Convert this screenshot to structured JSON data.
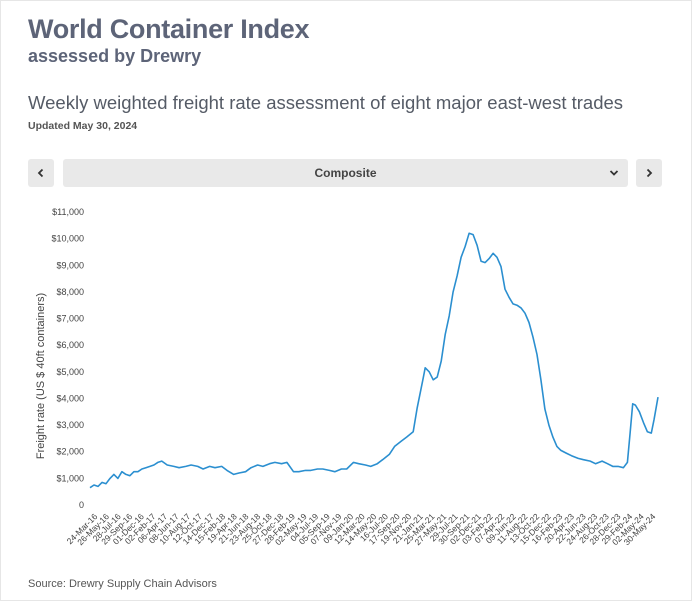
{
  "header": {
    "title": "World Container Index",
    "subtitle": "assessed by Drewry",
    "heading": "Weekly weighted freight rate assessment of eight major east-west trades",
    "updated": "Updated May 30, 2024"
  },
  "selector": {
    "value": "Composite",
    "prev_icon": "chevron-left-icon",
    "next_icon": "chevron-right-icon",
    "dropdown_icon": "chevron-down-icon"
  },
  "footer": {
    "source": "Source: Drewry Supply Chain Advisors"
  },
  "colors": {
    "line": "#2b8fd0",
    "text": "#5d6478",
    "button": "#e9e9e9"
  },
  "chart_data": {
    "type": "line",
    "title": "",
    "xlabel": "",
    "ylabel": "Freight rate (US $ 40ft containers)",
    "ylim": [
      0,
      11000
    ],
    "yticks": [
      {
        "value": 0,
        "label": "0"
      },
      {
        "value": 1000,
        "label": "$1,000"
      },
      {
        "value": 2000,
        "label": "$2,000"
      },
      {
        "value": 3000,
        "label": "$3,000"
      },
      {
        "value": 4000,
        "label": "$4,000"
      },
      {
        "value": 5000,
        "label": "$5,000"
      },
      {
        "value": 6000,
        "label": "$6,000"
      },
      {
        "value": 7000,
        "label": "$7,000"
      },
      {
        "value": 8000,
        "label": "$8,000"
      },
      {
        "value": 9000,
        "label": "$9,000"
      },
      {
        "value": 10000,
        "label": "$10,000"
      },
      {
        "value": 11000,
        "label": "$11,000"
      }
    ],
    "xticks": [
      "24-Mar-16",
      "26-May-16",
      "28-Jul-16",
      "29-Sep-16",
      "01-Dec-16",
      "02-Feb-17",
      "06-Apr-17",
      "08-Jun-17",
      "10-Aug-17",
      "12-Oct-17",
      "14-Dec-17",
      "15-Feb-18",
      "19-Apr-18",
      "21-Jun-18",
      "23-Aug-18",
      "25-Oct-18",
      "27-Dec-18",
      "28-Feb-19",
      "02-May-19",
      "04-Jul-19",
      "05-Sep-19",
      "07-Nov-19",
      "09-Jan-20",
      "12-Mar-20",
      "14-May-20",
      "16-Jul-20",
      "17-Sep-20",
      "19-Nov-20",
      "21-Jan-21",
      "25-Mar-21",
      "27-May-21",
      "29-Jul-21",
      "30-Sep-21",
      "02-Dec-21",
      "03-Feb-22",
      "07-Apr-22",
      "09-Jun-22",
      "11-Aug-22",
      "13-Oct-22",
      "15-Dec-22",
      "16-Feb-23",
      "20-Apr-23",
      "22-Jun-23",
      "24-Aug-23",
      "26-Oct-23",
      "28-Dec-23",
      "29-Feb-24",
      "02-May-24",
      "30-May-24"
    ],
    "series": [
      {
        "points": [
          [
            "2016-03-24",
            650
          ],
          [
            "2016-04-14",
            750
          ],
          [
            "2016-05-05",
            700
          ],
          [
            "2016-05-26",
            850
          ],
          [
            "2016-06-16",
            800
          ],
          [
            "2016-07-07",
            1000
          ],
          [
            "2016-07-28",
            1150
          ],
          [
            "2016-08-18",
            1000
          ],
          [
            "2016-09-08",
            1250
          ],
          [
            "2016-09-29",
            1150
          ],
          [
            "2016-10-20",
            1100
          ],
          [
            "2016-11-10",
            1250
          ],
          [
            "2016-12-01",
            1250
          ],
          [
            "2016-12-22",
            1350
          ],
          [
            "2017-01-12",
            1400
          ],
          [
            "2017-02-02",
            1450
          ],
          [
            "2017-02-23",
            1500
          ],
          [
            "2017-03-16",
            1600
          ],
          [
            "2017-04-06",
            1650
          ],
          [
            "2017-05-04",
            1500
          ],
          [
            "2017-06-08",
            1450
          ],
          [
            "2017-07-06",
            1400
          ],
          [
            "2017-08-10",
            1450
          ],
          [
            "2017-09-07",
            1500
          ],
          [
            "2017-10-12",
            1450
          ],
          [
            "2017-11-09",
            1350
          ],
          [
            "2017-12-14",
            1450
          ],
          [
            "2018-01-11",
            1400
          ],
          [
            "2018-02-15",
            1450
          ],
          [
            "2018-03-15",
            1300
          ],
          [
            "2018-04-19",
            1150
          ],
          [
            "2018-05-17",
            1200
          ],
          [
            "2018-06-21",
            1250
          ],
          [
            "2018-07-19",
            1400
          ],
          [
            "2018-08-23",
            1500
          ],
          [
            "2018-09-20",
            1450
          ],
          [
            "2018-10-25",
            1550
          ],
          [
            "2018-11-22",
            1600
          ],
          [
            "2018-12-27",
            1550
          ],
          [
            "2019-01-24",
            1600
          ],
          [
            "2019-02-28",
            1250
          ],
          [
            "2019-03-28",
            1250
          ],
          [
            "2019-05-02",
            1300
          ],
          [
            "2019-05-30",
            1300
          ],
          [
            "2019-07-04",
            1350
          ],
          [
            "2019-08-01",
            1350
          ],
          [
            "2019-09-05",
            1300
          ],
          [
            "2019-10-03",
            1250
          ],
          [
            "2019-11-07",
            1350
          ],
          [
            "2019-12-05",
            1350
          ],
          [
            "2020-01-09",
            1600
          ],
          [
            "2020-02-06",
            1550
          ],
          [
            "2020-03-12",
            1500
          ],
          [
            "2020-04-09",
            1450
          ],
          [
            "2020-05-14",
            1550
          ],
          [
            "2020-06-11",
            1700
          ],
          [
            "2020-07-16",
            1900
          ],
          [
            "2020-08-13",
            2200
          ],
          [
            "2020-09-17",
            2400
          ],
          [
            "2020-10-15",
            2550
          ],
          [
            "2020-11-19",
            2750
          ],
          [
            "2020-12-10",
            3650
          ],
          [
            "2021-01-07",
            4650
          ],
          [
            "2021-01-21",
            5150
          ],
          [
            "2021-02-11",
            5000
          ],
          [
            "2021-03-04",
            4700
          ],
          [
            "2021-03-25",
            4800
          ],
          [
            "2021-04-15",
            5400
          ],
          [
            "2021-05-06",
            6400
          ],
          [
            "2021-05-27",
            7100
          ],
          [
            "2021-06-17",
            8000
          ],
          [
            "2021-07-08",
            8600
          ],
          [
            "2021-07-29",
            9300
          ],
          [
            "2021-08-19",
            9700
          ],
          [
            "2021-09-09",
            10200
          ],
          [
            "2021-09-30",
            10150
          ],
          [
            "2021-10-21",
            9750
          ],
          [
            "2021-11-11",
            9150
          ],
          [
            "2021-12-02",
            9100
          ],
          [
            "2021-12-23",
            9250
          ],
          [
            "2022-01-13",
            9450
          ],
          [
            "2022-02-03",
            9300
          ],
          [
            "2022-02-24",
            8950
          ],
          [
            "2022-03-17",
            8100
          ],
          [
            "2022-04-07",
            7800
          ],
          [
            "2022-04-28",
            7550
          ],
          [
            "2022-05-19",
            7500
          ],
          [
            "2022-06-09",
            7400
          ],
          [
            "2022-06-30",
            7200
          ],
          [
            "2022-07-21",
            6850
          ],
          [
            "2022-08-11",
            6300
          ],
          [
            "2022-09-01",
            5650
          ],
          [
            "2022-09-22",
            4700
          ],
          [
            "2022-10-13",
            3600
          ],
          [
            "2022-11-03",
            3000
          ],
          [
            "2022-11-24",
            2550
          ],
          [
            "2022-12-15",
            2200
          ],
          [
            "2023-01-05",
            2050
          ],
          [
            "2023-02-02",
            1950
          ],
          [
            "2023-03-02",
            1850
          ],
          [
            "2023-04-06",
            1750
          ],
          [
            "2023-05-04",
            1700
          ],
          [
            "2023-06-08",
            1650
          ],
          [
            "2023-07-06",
            1550
          ],
          [
            "2023-08-10",
            1650
          ],
          [
            "2023-09-07",
            1550
          ],
          [
            "2023-10-05",
            1450
          ],
          [
            "2023-11-02",
            1450
          ],
          [
            "2023-11-30",
            1400
          ],
          [
            "2023-12-21",
            1600
          ],
          [
            "2024-01-04",
            2700
          ],
          [
            "2024-01-18",
            3800
          ],
          [
            "2024-02-01",
            3750
          ],
          [
            "2024-02-22",
            3500
          ],
          [
            "2024-03-14",
            3100
          ],
          [
            "2024-04-04",
            2750
          ],
          [
            "2024-04-25",
            2700
          ],
          [
            "2024-05-09",
            3200
          ],
          [
            "2024-05-30",
            4050
          ]
        ]
      }
    ]
  }
}
